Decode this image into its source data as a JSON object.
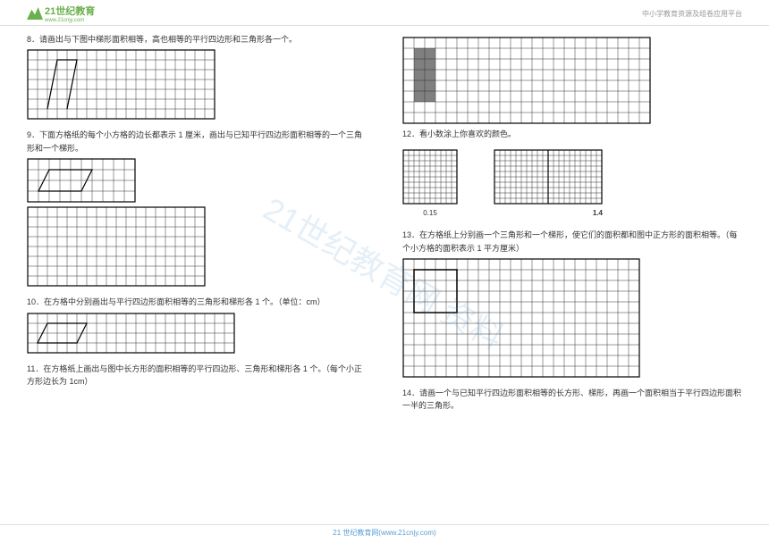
{
  "header": {
    "logo_text": "21世纪教育",
    "logo_sub": "www.21cnjy.com",
    "right_text": "中小学教育资源及组卷应用平台"
  },
  "left": {
    "q8": "8．请画出与下图中梯形面积相等，高也相等的平行四边形和三角形各一个。",
    "q9": "9．下面方格纸的每个小方格的边长都表示 1 厘米，画出与已知平行四边形面积相等的一个三角形和一个梯形。",
    "q10": "10．在方格中分别画出与平行四边形面积相等的三角形和梯形各 1 个。（单位：cm）",
    "q11": "11．在方格纸上画出与图中长方形的面积相等的平行四边形、三角形和梯形各 1 个。（每个小正方形边长为 1cm）"
  },
  "right": {
    "q12": "12．看小数涂上你喜欢的颜色。",
    "q12_label1": "0.15",
    "q12_label2": "1.4",
    "q13": "13．在方格纸上分别画一个三角形和一个梯形，使它们的面积都和图中正方形的面积相等。（每个小方格的面积表示 1 平方厘米）",
    "q14": "14．请画一个与已知平行四边形面积相等的长方形、梯形，再画一个面积相当于平行四边形面积一半的三角形。"
  },
  "footer": "21 世纪教育网(www.21cnjy.com)",
  "watermark": "21世纪教育网  资料",
  "grids": {
    "q8": {
      "cols": 19,
      "rows": 7,
      "cell": 11,
      "shape": "trapezoid_tri"
    },
    "q9a": {
      "cols": 10,
      "rows": 4,
      "cell": 12,
      "shape": "parallelogram"
    },
    "q9b": {
      "cols": 18,
      "rows": 8,
      "cell": 11
    },
    "q10": {
      "cols": 21,
      "rows": 4,
      "cell": 11,
      "shape": "parallelogram_small"
    },
    "q11_top": {
      "cols": 23,
      "rows": 8,
      "cell": 12,
      "shape": "shaded_rect"
    },
    "q12a": {
      "cols": 10,
      "rows": 10,
      "cell": 6
    },
    "q12b": {
      "cols": 20,
      "rows": 10,
      "cell": 6
    },
    "q13": {
      "cols": 22,
      "rows": 11,
      "cell": 12,
      "shape": "square_outline"
    }
  },
  "colors": {
    "grid_line": "#333333",
    "grid_border": "#000000",
    "shade": "#808080",
    "accent": "#6ab04c"
  }
}
